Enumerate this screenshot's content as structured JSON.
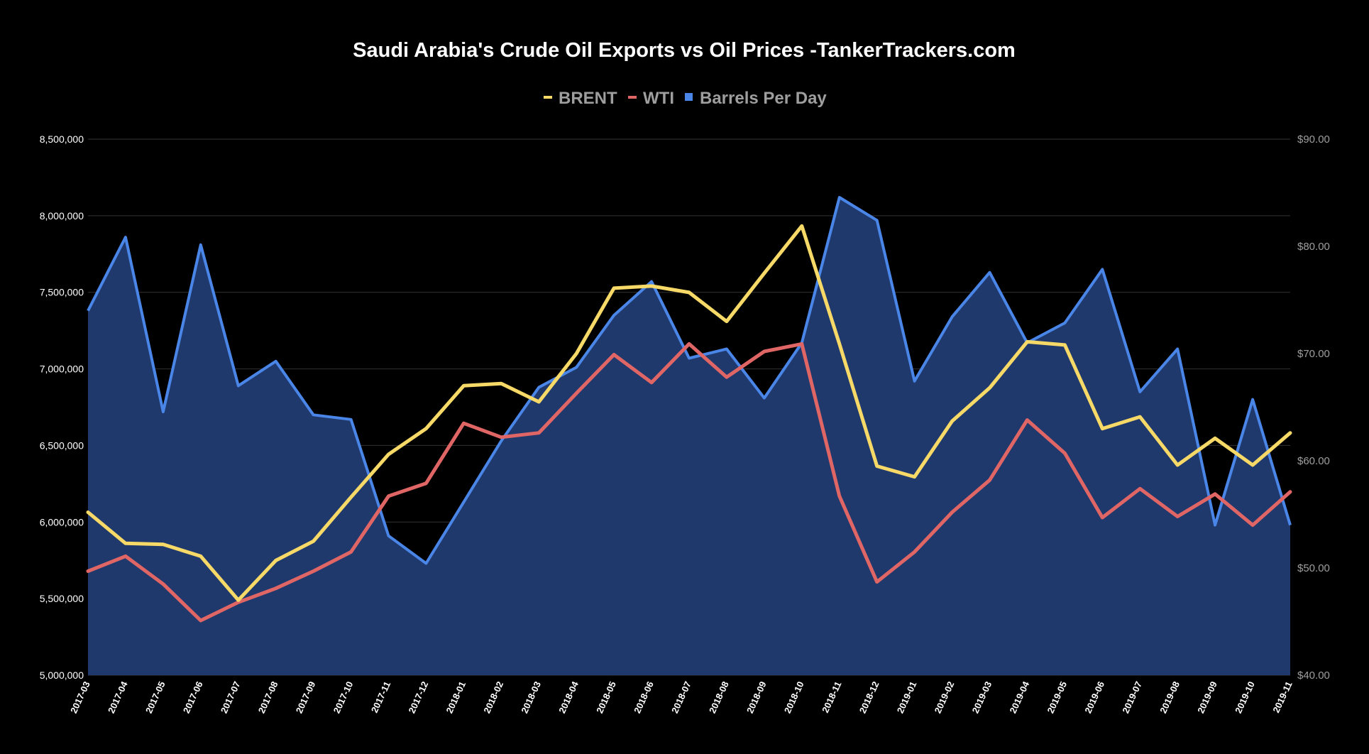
{
  "chart_data": {
    "type": "line",
    "title": "Saudi Arabia's Crude Oil Exports vs Oil Prices -TankerTrackers.com",
    "legend_position": "top",
    "grid": true,
    "categories": [
      "2017-03",
      "2017-04",
      "2017-05",
      "2017-06",
      "2017-07",
      "2017-08",
      "2017-09",
      "2017-10",
      "2017-11",
      "2017-12",
      "2018-01",
      "2018-02",
      "2018-03",
      "2018-04",
      "2018-05",
      "2018-06",
      "2018-07",
      "2018-08",
      "2018-09",
      "2018-10",
      "2018-11",
      "2018-12",
      "2019-01",
      "2019-02",
      "2019-03",
      "2019-04",
      "2019-05",
      "2019-06",
      "2019-07",
      "2019-08",
      "2019-09",
      "2019-10",
      "2019-11"
    ],
    "left_axis": {
      "ylim": [
        5000000,
        8500000
      ],
      "ticks": [
        5000000,
        5500000,
        6000000,
        6500000,
        7000000,
        7500000,
        8000000,
        8500000
      ],
      "tick_labels": [
        "5,000,000",
        "5,500,000",
        "6,000,000",
        "6,500,000",
        "7,000,000",
        "7,500,000",
        "8,000,000",
        "8,500,000"
      ]
    },
    "right_axis": {
      "ylim": [
        40,
        90
      ],
      "ticks": [
        40,
        50,
        60,
        70,
        80,
        90
      ],
      "tick_labels": [
        "$40.00",
        "$50.00",
        "$60.00",
        "$70.00",
        "$80.00",
        "$90.00"
      ]
    },
    "series": [
      {
        "name": "BRENT",
        "type": "line",
        "axis": "right",
        "color": "#f7d967",
        "values": [
          55.2,
          52.3,
          52.2,
          51.1,
          47.0,
          50.7,
          52.5,
          56.6,
          60.6,
          63.0,
          67.0,
          67.2,
          65.5,
          70.0,
          76.1,
          76.3,
          75.7,
          73.0,
          77.5,
          81.9,
          70.9,
          59.5,
          58.5,
          63.7,
          66.8,
          71.1,
          70.8,
          63.0,
          64.1,
          59.6,
          62.1,
          59.6,
          62.6
        ]
      },
      {
        "name": "WTI",
        "type": "line",
        "axis": "right",
        "color": "#e06666",
        "values": [
          49.7,
          51.1,
          48.5,
          45.1,
          46.8,
          48.1,
          49.7,
          51.5,
          56.7,
          57.9,
          63.5,
          62.2,
          62.6,
          66.3,
          69.9,
          67.3,
          70.9,
          67.8,
          70.2,
          70.9,
          56.7,
          48.7,
          51.5,
          55.2,
          58.2,
          63.8,
          60.7,
          54.7,
          57.4,
          54.8,
          56.9,
          54.0,
          57.1
        ]
      },
      {
        "name": "Barrels Per Day",
        "type": "area",
        "axis": "left",
        "color": "#4a86e8",
        "fill": "#20396d",
        "values": [
          7380000,
          7860000,
          6720000,
          7810000,
          6890000,
          7050000,
          6700000,
          6670000,
          5910000,
          5730000,
          6130000,
          6530000,
          6880000,
          7010000,
          7350000,
          7570000,
          7070000,
          7130000,
          6810000,
          7170000,
          8120000,
          7970000,
          6920000,
          7340000,
          7630000,
          7170000,
          7300000,
          7650000,
          6850000,
          7130000,
          5980000,
          6800000,
          5980000
        ]
      }
    ]
  }
}
